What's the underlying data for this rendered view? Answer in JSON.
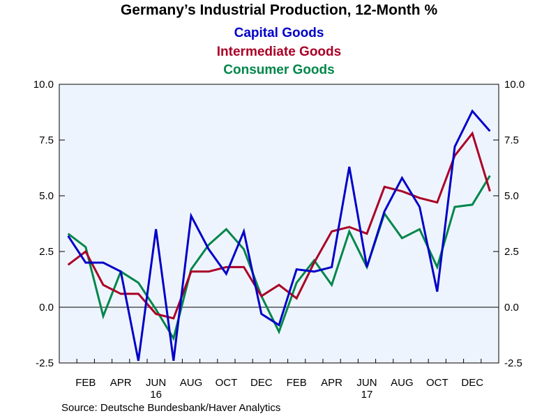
{
  "chart_data": {
    "type": "line",
    "title": "Germany’s Industrial Production, 12-Month %",
    "source": "Source:  Deutsche Bundesbank/Haver Analytics",
    "x": [
      "2016-01",
      "2016-02",
      "2016-03",
      "2016-04",
      "2016-05",
      "2016-06",
      "2016-07",
      "2016-08",
      "2016-09",
      "2016-10",
      "2016-11",
      "2016-12",
      "2017-01",
      "2017-02",
      "2017-03",
      "2017-04",
      "2017-05",
      "2017-06",
      "2017-07",
      "2017-08",
      "2017-09",
      "2017-10",
      "2017-11",
      "2017-12",
      "2018-01"
    ],
    "x_tick_labels": [
      {
        "month": "2016-02",
        "label": "FEB"
      },
      {
        "month": "2016-04",
        "label": "APR"
      },
      {
        "month": "2016-06",
        "label": "JUN"
      },
      {
        "month": "2016-08",
        "label": "AUG"
      },
      {
        "month": "2016-10",
        "label": "OCT"
      },
      {
        "month": "2016-12",
        "label": "DEC"
      },
      {
        "month": "2017-02",
        "label": "FEB"
      },
      {
        "month": "2017-04",
        "label": "APR"
      },
      {
        "month": "2017-06",
        "label": "JUN"
      },
      {
        "month": "2017-08",
        "label": "AUG"
      },
      {
        "month": "2017-10",
        "label": "OCT"
      },
      {
        "month": "2017-12",
        "label": "DEC"
      }
    ],
    "year_labels": [
      {
        "month": "2016-06",
        "label": "16"
      },
      {
        "month": "2017-06",
        "label": "17"
      }
    ],
    "ylim": [
      -2.5,
      10.0
    ],
    "y_ticks": [
      -2.5,
      0.0,
      2.5,
      5.0,
      7.5,
      10.0
    ],
    "y_tick_labels": [
      "-2.5",
      "0.0",
      "2.5",
      "5.0",
      "7.5",
      "10.0"
    ],
    "reference_line": 0.0,
    "series": [
      {
        "name": "Capital Goods",
        "color": "#0000c8",
        "values": [
          3.2,
          2.0,
          2.0,
          1.6,
          -2.4,
          3.5,
          -2.4,
          4.1,
          2.6,
          1.5,
          3.4,
          -0.3,
          -0.8,
          1.7,
          1.6,
          1.8,
          6.3,
          1.8,
          4.3,
          5.8,
          4.5,
          0.7,
          7.2,
          8.8,
          7.9
        ]
      },
      {
        "name": "Intermediate Goods",
        "color": "#aa0026",
        "values": [
          1.9,
          2.5,
          1.0,
          0.6,
          0.6,
          -0.3,
          -0.5,
          1.6,
          1.6,
          1.8,
          1.8,
          0.5,
          1.0,
          0.4,
          2.0,
          3.4,
          3.6,
          3.3,
          5.4,
          5.2,
          4.9,
          4.7,
          6.8,
          7.8,
          5.2
        ]
      },
      {
        "name": "Consumer Goods",
        "color": "#00864a",
        "values": [
          3.3,
          2.7,
          -0.4,
          1.6,
          1.1,
          -0.1,
          -1.4,
          1.7,
          2.8,
          3.5,
          2.6,
          0.5,
          -1.1,
          1.1,
          2.1,
          1.0,
          3.4,
          1.8,
          4.2,
          3.1,
          3.5,
          1.8,
          4.5,
          4.6,
          5.9
        ]
      }
    ],
    "grid": false,
    "legend": "top-center",
    "background": "#eef4fd",
    "axis_color": "#000000"
  }
}
